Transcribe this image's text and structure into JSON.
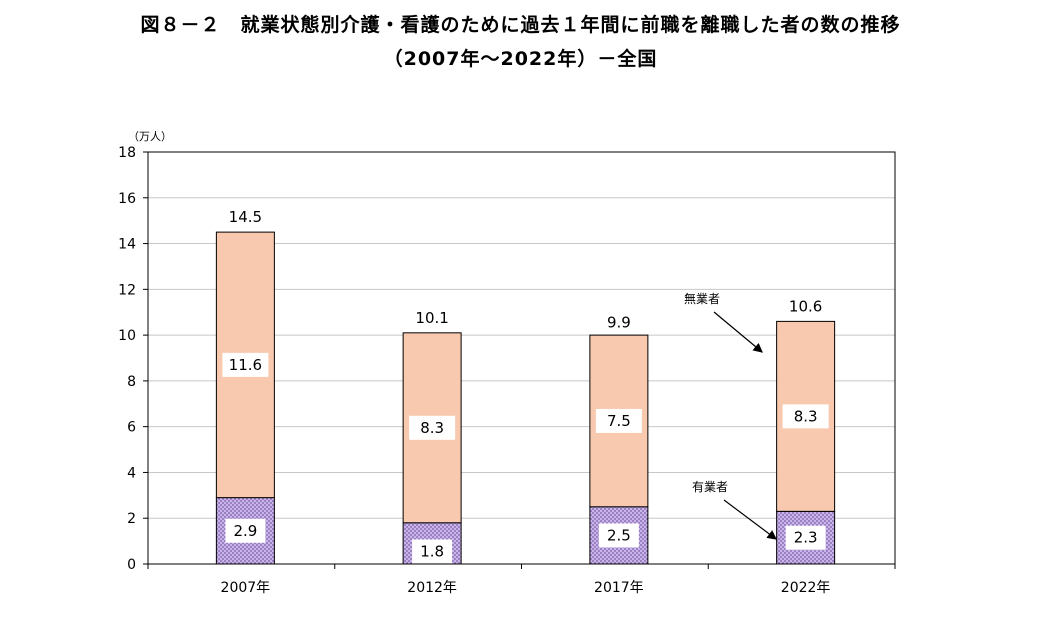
{
  "title_line1": "図８－２　就業状態別介護・看護のために過去１年間に前職を離職した者の数の推移",
  "title_line2": "（2007年～2022年）－全国",
  "chart_data": {
    "type": "bar",
    "stacked": true,
    "unit_label": "（万人）",
    "categories": [
      "2007年",
      "2012年",
      "2017年",
      "2022年"
    ],
    "series": [
      {
        "name": "有業者",
        "values": [
          2.9,
          1.8,
          2.5,
          2.3
        ],
        "color": "#b49bd8"
      },
      {
        "name": "無業者",
        "values": [
          11.6,
          8.3,
          7.5,
          8.3
        ],
        "color": "#f8c9ae"
      }
    ],
    "series_labels": [
      [
        "2.9",
        "1.8",
        "2.5",
        "2.3"
      ],
      [
        "11.6",
        "8.3",
        "7.5",
        "8.3"
      ]
    ],
    "totals": [
      14.5,
      10.1,
      9.9,
      10.6
    ],
    "total_labels": [
      "14.5",
      "10.1",
      "9.9",
      "10.6"
    ],
    "ylim": [
      0,
      18
    ],
    "yticks": [
      0,
      2,
      4,
      6,
      8,
      10,
      12,
      14,
      16,
      18
    ],
    "grid": true,
    "annotations": [
      "無業者",
      "有業者"
    ]
  }
}
